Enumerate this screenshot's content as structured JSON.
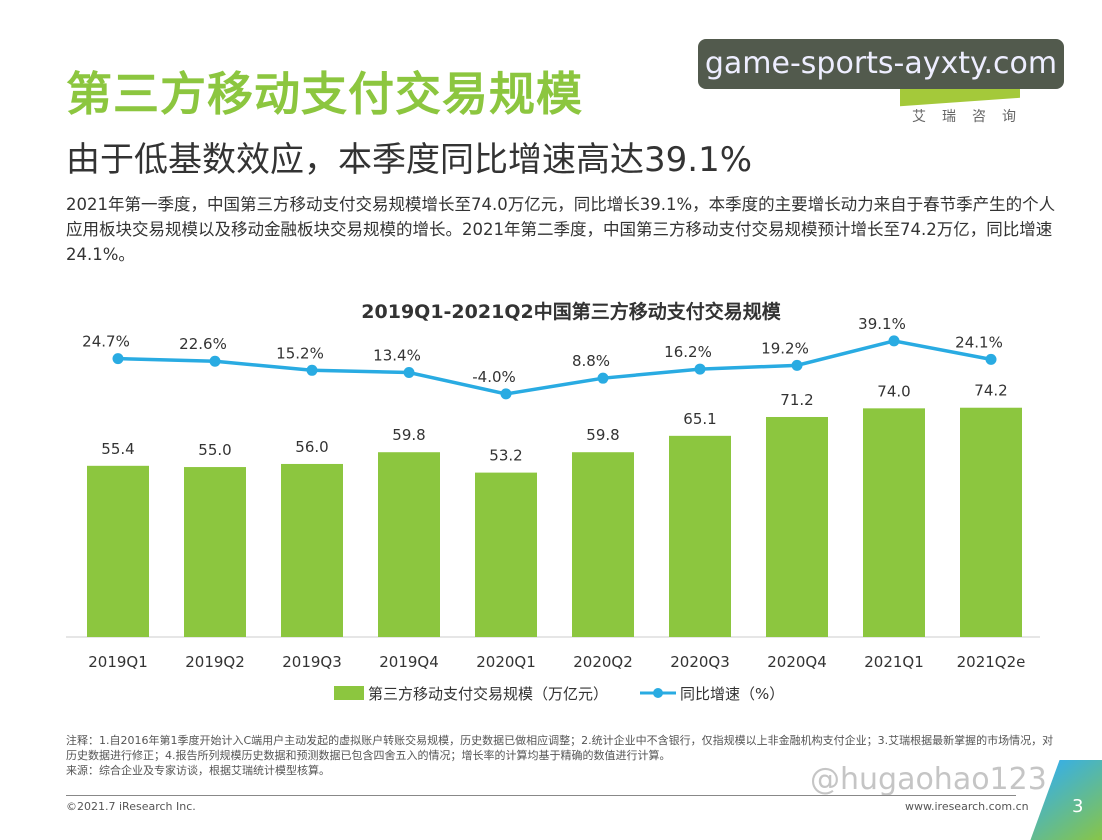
{
  "header": {
    "title": "第三方移动支付交易规模",
    "subtitle": "由于低基数效应，本季度同比增速高达39.1%",
    "description": "2021年第一季度，中国第三方移动支付交易规模增长至74.0万亿元，同比增长39.1%，本季度的主要增长动力来自于春节季产生的个人应用板块交易规模以及移动金融板块交易规模的增长。2021年第二季度，中国第三方移动支付交易规模预计增长至74.2万亿，同比增速24.1%。"
  },
  "watermark": "game-sports-ayxty.com",
  "logo": {
    "cn": "艾瑞咨询"
  },
  "chart_data": {
    "type": "bar+line",
    "title": "2019Q1-2021Q2中国第三方移动支付交易规模",
    "categories": [
      "2019Q1",
      "2019Q2",
      "2019Q3",
      "2019Q4",
      "2020Q1",
      "2020Q2",
      "2020Q3",
      "2020Q4",
      "2021Q1",
      "2021Q2e"
    ],
    "series": [
      {
        "name": "第三方移动支付交易规模（万亿元）",
        "type": "bar",
        "color": "#8cc63f",
        "values": [
          55.4,
          55.0,
          56.0,
          59.8,
          53.2,
          59.8,
          65.1,
          71.2,
          74.0,
          74.2
        ],
        "labels": [
          "55.4",
          "55.0",
          "56.0",
          "59.8",
          "53.2",
          "59.8",
          "65.1",
          "71.2",
          "74.0",
          "74.2"
        ]
      },
      {
        "name": "同比增速（%）",
        "type": "line",
        "color": "#29abe2",
        "values": [
          24.7,
          22.6,
          15.2,
          13.4,
          -4.0,
          8.8,
          16.2,
          19.2,
          39.1,
          24.1
        ],
        "labels": [
          "24.7%",
          "22.6%",
          "15.2%",
          "13.4%",
          "-4.0%",
          "8.8%",
          "16.2%",
          "19.2%",
          "39.1%",
          "24.1%"
        ]
      }
    ],
    "legend": "bottom",
    "grid": false
  },
  "footer": {
    "notes": "注释：1.自2016年第1季度开始计入C端用户主动发起的虚拟账户转账交易规模，历史数据已做相应调整；2.统计企业中不含银行，仅指规模以上非金融机构支付企业；3.艾瑞根据最新掌握的市场情况，对历史数据进行修正；4.报告所列规模历史数据和预测数据已包含四舍五入的情况；增长率的计算均基于精确的数值进行计算。",
    "source": "来源：综合企业及专家访谈，根据艾瑞统计模型核算。",
    "copyright": "©2021.7 iResearch Inc.",
    "site": "www.iresearch.com.cn",
    "page": "3",
    "social_watermark": "@hugaohao123"
  }
}
